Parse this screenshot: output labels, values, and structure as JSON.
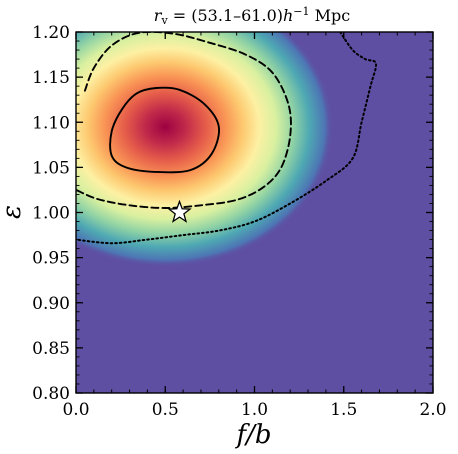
{
  "chart_data": {
    "type": "heatmap",
    "title_parts": {
      "r": "r",
      "sub": "v",
      "range": " = (53.1–61.0)",
      "h": "h",
      "sup": "−1",
      "unit": " Mpc"
    },
    "xlabel": "f/b",
    "ylabel": "ε",
    "xlim": [
      0.0,
      2.0
    ],
    "ylim": [
      0.8,
      1.2
    ],
    "xticks": [
      0.0,
      0.5,
      1.0,
      1.5,
      2.0
    ],
    "xtick_labels": [
      "0.0",
      "0.5",
      "1.0",
      "1.5",
      "2.0"
    ],
    "yticks": [
      0.8,
      0.85,
      0.9,
      0.95,
      1.0,
      1.05,
      1.1,
      1.15,
      1.2
    ],
    "ytick_labels": [
      "0.80",
      "0.85",
      "0.90",
      "0.95",
      "1.00",
      "1.05",
      "1.10",
      "1.15",
      "1.20"
    ],
    "grid": false,
    "colormap": "Spectral_r",
    "background_color": "#5e4fa2",
    "density_peak": {
      "x": 0.5,
      "y": 1.095
    },
    "contours": [
      {
        "level": "inner",
        "style": "solid",
        "points": [
          [
            0.45,
            1.138
          ],
          [
            0.58,
            1.136
          ],
          [
            0.72,
            1.12
          ],
          [
            0.8,
            1.095
          ],
          [
            0.76,
            1.065
          ],
          [
            0.64,
            1.047
          ],
          [
            0.44,
            1.045
          ],
          [
            0.28,
            1.05
          ],
          [
            0.2,
            1.063
          ],
          [
            0.2,
            1.09
          ],
          [
            0.26,
            1.115
          ],
          [
            0.34,
            1.132
          ]
        ]
      },
      {
        "level": "middle",
        "style": "dashed",
        "points": [
          [
            0.05,
            1.135
          ],
          [
            0.1,
            1.16
          ],
          [
            0.2,
            1.185
          ],
          [
            0.35,
            1.199
          ],
          [
            0.55,
            1.198
          ],
          [
            0.75,
            1.188
          ],
          [
            0.95,
            1.175
          ],
          [
            1.1,
            1.155
          ],
          [
            1.19,
            1.12
          ],
          [
            1.2,
            1.085
          ],
          [
            1.15,
            1.05
          ],
          [
            1.05,
            1.028
          ],
          [
            0.9,
            1.014
          ],
          [
            0.7,
            1.008
          ],
          [
            0.5,
            1.005
          ],
          [
            0.3,
            1.008
          ],
          [
            0.12,
            1.015
          ],
          [
            0.0,
            1.025
          ]
        ]
      },
      {
        "level": "outer",
        "style": "dotted",
        "points": [
          [
            1.48,
            1.2
          ],
          [
            1.55,
            1.18
          ],
          [
            1.62,
            1.17
          ],
          [
            1.68,
            1.165
          ],
          [
            1.65,
            1.14
          ],
          [
            1.6,
            1.1
          ],
          [
            1.55,
            1.06
          ],
          [
            1.4,
            1.035
          ],
          [
            1.2,
            1.01
          ],
          [
            1.0,
            0.99
          ],
          [
            0.8,
            0.98
          ],
          [
            0.6,
            0.975
          ],
          [
            0.4,
            0.97
          ],
          [
            0.2,
            0.966
          ],
          [
            0.0,
            0.97
          ]
        ]
      }
    ],
    "marker": {
      "shape": "star",
      "x": 0.58,
      "y": 1.0,
      "fill": "#ffffff",
      "stroke": "#000000"
    }
  }
}
